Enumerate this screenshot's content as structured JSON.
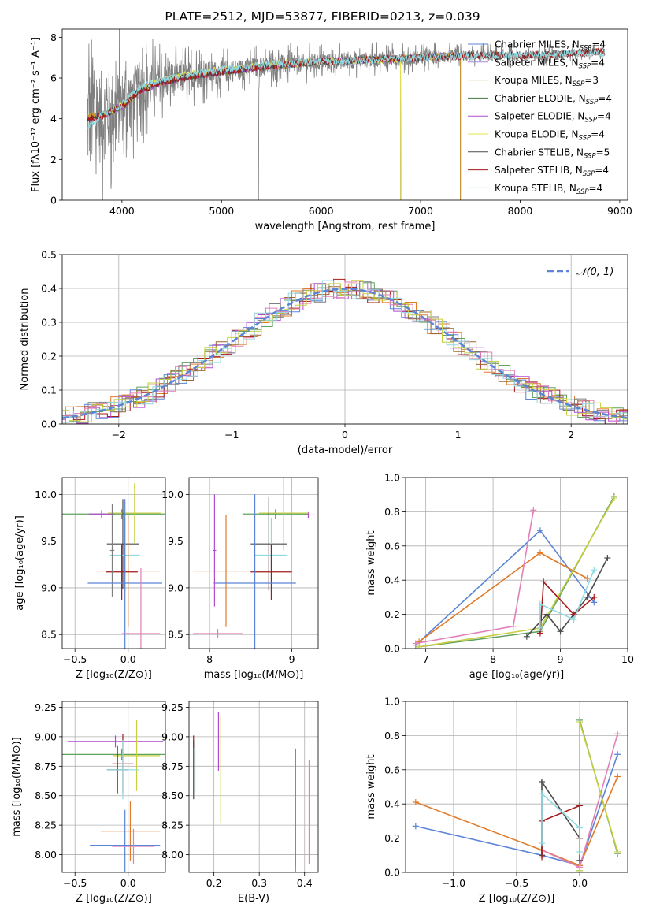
{
  "title": "PLATE=2512, MJD=53877, FIBERID=0213, z=0.039",
  "colors": {
    "blue": "#5b84d6",
    "orange": "#e07b2a",
    "green": "#5fa25f",
    "red": "#a51a1a",
    "purple": "#b24bd0",
    "brown": "#a0662e",
    "pink": "#e27fb8",
    "gray": "#7f7f7f",
    "olive": "#c7cf3f",
    "cyan": "#8fd9e0",
    "charcoal": "#4a4a4a",
    "darkgreen": "#3f7a3f"
  },
  "chart_data": [
    {
      "type": "line",
      "ylabel": "Flux [fλ10⁻¹⁷ erg cm⁻² s⁻¹ A⁻¹]",
      "xlabel": "wavelength [Angstrom, rest frame]",
      "xlim": [
        3400,
        9080
      ],
      "ylim": [
        0,
        8.4
      ],
      "xticks": [
        4000,
        5000,
        6000,
        7000,
        8000,
        9000
      ],
      "yticks": [
        0,
        2,
        4,
        6,
        8
      ],
      "legend_position": "upper right",
      "series": [
        {
          "name": "Chabrier MILES, N_SSP=4",
          "color": "#5b84d6",
          "x": [
            3650,
            3800,
            4000,
            4200,
            4400,
            4700,
            5000,
            5500,
            6000,
            6500,
            7000,
            7200,
            7400
          ],
          "y": [
            4.0,
            4.2,
            4.6,
            5.5,
            5.8,
            6.1,
            6.3,
            6.6,
            6.8,
            6.9,
            7.0,
            7.1,
            7.1
          ]
        },
        {
          "name": "Salpeter MILES, N_SSP=4",
          "color": "#a58cdf",
          "x": [
            3650,
            3800,
            4000,
            4200,
            4400,
            4700,
            5000,
            5500,
            6000,
            6500,
            7000,
            7200,
            7400
          ],
          "y": [
            4.0,
            4.1,
            4.6,
            5.4,
            5.8,
            6.1,
            6.3,
            6.6,
            6.8,
            6.9,
            7.0,
            7.1,
            7.1
          ]
        },
        {
          "name": "Kroupa MILES, N_SSP=3",
          "color": "#c8962c",
          "x": [
            3650,
            3800,
            4000,
            4200,
            4400,
            4700,
            5000,
            5500,
            6000,
            6500,
            7000,
            7200,
            7400
          ],
          "y": [
            4.1,
            4.2,
            4.6,
            5.5,
            5.8,
            6.1,
            6.3,
            6.6,
            6.8,
            6.9,
            7.0,
            7.1,
            7.1
          ]
        },
        {
          "name": "Chabrier ELODIE, N_SSP=4",
          "color": "#3f7a3f",
          "x": [
            3900,
            4000,
            4200,
            4400,
            4700,
            5000,
            5500,
            6000,
            6500,
            6800
          ],
          "y": [
            4.4,
            4.6,
            5.5,
            5.8,
            6.1,
            6.3,
            6.6,
            6.8,
            6.9,
            6.9
          ]
        },
        {
          "name": "Salpeter ELODIE, N_SSP=4",
          "color": "#b24bd0",
          "x": [
            3900,
            4000,
            4200,
            4400,
            4700,
            5000,
            5500,
            6000,
            6500,
            6800
          ],
          "y": [
            4.4,
            4.6,
            5.4,
            5.8,
            6.1,
            6.3,
            6.6,
            6.8,
            6.9,
            6.9
          ]
        },
        {
          "name": "Kroupa ELODIE, N_SSP=4",
          "color": "#e3e34a",
          "x": [
            3900,
            4000,
            4200,
            4400,
            4700,
            5000,
            5500,
            6000,
            6500,
            6800
          ],
          "y": [
            4.4,
            4.6,
            5.5,
            5.9,
            6.2,
            6.4,
            6.7,
            6.8,
            6.9,
            6.9
          ]
        },
        {
          "name": "Chabrier STELIB, N_SSP=5",
          "color": "#4a4a4a",
          "x": [
            3650,
            3800,
            4000,
            4200,
            4400,
            4700,
            5000,
            5500,
            6000,
            6500,
            7000,
            7500,
            8000,
            8500,
            8850
          ],
          "y": [
            4.0,
            4.2,
            4.6,
            5.5,
            5.8,
            6.1,
            6.3,
            6.6,
            6.8,
            6.9,
            7.0,
            7.1,
            7.1,
            7.2,
            7.3
          ]
        },
        {
          "name": "Salpeter STELIB, N_SSP=4",
          "color": "#a51a1a",
          "x": [
            3650,
            3800,
            4000,
            4200,
            4400,
            4700,
            5000,
            5500,
            6000,
            6500,
            7000,
            7500,
            8000,
            8500,
            8850
          ],
          "y": [
            4.0,
            4.1,
            4.6,
            5.4,
            5.8,
            6.1,
            6.3,
            6.6,
            6.8,
            6.9,
            7.0,
            7.1,
            7.1,
            7.2,
            7.3
          ]
        },
        {
          "name": "Kroupa STELIB, N_SSP=4",
          "color": "#8fd9e0",
          "x": [
            3650,
            3800,
            4000,
            4200,
            4400,
            4700,
            5000,
            5500,
            6000,
            6500,
            7000,
            7500,
            8000,
            8500,
            8850
          ],
          "y": [
            3.6,
            4.2,
            4.7,
            5.6,
            5.9,
            6.2,
            6.4,
            6.7,
            6.8,
            6.9,
            7.0,
            7.1,
            7.1,
            7.2,
            7.2
          ]
        }
      ],
      "observed": {
        "color": "#7f7f7f",
        "x": [
          3650,
          3800,
          4000,
          4200,
          4400,
          4700,
          5000,
          5500,
          6000,
          6500,
          7000,
          7500,
          8000,
          8500,
          8850
        ],
        "y": [
          4.0,
          4.1,
          4.6,
          5.5,
          5.8,
          6.1,
          6.3,
          6.6,
          6.8,
          6.9,
          7.0,
          7.1,
          7.1,
          7.2,
          7.3
        ],
        "noise": [
          4.0,
          3.2,
          2.6,
          1.8,
          1.3,
          1.0,
          0.8,
          0.7,
          0.6,
          0.55,
          0.5,
          0.4,
          0.35,
          0.3,
          0.3
        ]
      }
    },
    {
      "type": "histogram",
      "xlabel": "(data-model)/error",
      "ylabel": "Normed distribution",
      "xlim": [
        -2.5,
        2.5
      ],
      "ylim": [
        0,
        0.5
      ],
      "xticks": [
        -2,
        -1,
        0,
        1,
        2
      ],
      "yticks": [
        0.0,
        0.1,
        0.2,
        0.3,
        0.4,
        0.5
      ],
      "bin_width": 0.1,
      "reference": {
        "name": "𝒩(0, 1)",
        "color": "#5b84d6",
        "style": "dashed",
        "mean": 0,
        "std": 1
      },
      "series": [
        {
          "color": "#5b84d6"
        },
        {
          "color": "#e07b2a"
        },
        {
          "color": "#5fa25f"
        },
        {
          "color": "#a51a1a"
        },
        {
          "color": "#b24bd0"
        },
        {
          "color": "#a0662e"
        },
        {
          "color": "#e27fb8"
        },
        {
          "color": "#7f7f7f"
        },
        {
          "color": "#c7cf3f"
        },
        {
          "color": "#8fd9e0"
        }
      ]
    },
    {
      "type": "errorbar",
      "xlabel": "Z [log₁₀(Z/Z⊙)]",
      "ylabel": "age  [log₁₀(age/yr)]",
      "xlim": [
        -0.62,
        0.35
      ],
      "ylim": [
        8.35,
        10.18
      ],
      "xticks": [
        -0.5,
        0.0
      ],
      "yticks": [
        8.5,
        9.0,
        9.5,
        10.0
      ],
      "points": [
        {
          "x": -0.06,
          "y": 9.79,
          "xerr": 0.58,
          "yerr": 0.05,
          "color": "#5fa25f"
        },
        {
          "x": -0.25,
          "y": 9.79,
          "xerr": 0.12,
          "yerr": 0.04,
          "color": "#b24bd0"
        },
        {
          "x": 0.06,
          "y": 9.8,
          "xerr": 0.25,
          "yerr": 0.32,
          "color": "#c7cf3f"
        },
        {
          "x": -0.05,
          "y": 9.47,
          "xerr": 0.15,
          "yerr": 0.48,
          "color": "#4a4a4a"
        },
        {
          "x": -0.03,
          "y": 9.35,
          "xerr": 0.14,
          "yerr": 0.4,
          "color": "#8fd9e0"
        },
        {
          "x": 0.0,
          "y": 9.18,
          "xerr": 0.3,
          "yerr": 0.6,
          "color": "#e07b2a"
        },
        {
          "x": -0.06,
          "y": 9.17,
          "xerr": 0.15,
          "yerr": 0.3,
          "color": "#a51a1a"
        },
        {
          "x": -0.15,
          "y": 9.4,
          "xerr": 0.02,
          "yerr": 0.5,
          "color": "#7f7f7f"
        },
        {
          "x": -0.03,
          "y": 9.05,
          "xerr": 0.35,
          "yerr": 0.9,
          "color": "#5b84d6"
        },
        {
          "x": 0.12,
          "y": 8.51,
          "xerr": 0.18,
          "yerr": 0.7,
          "color": "#e27fb8"
        }
      ]
    },
    {
      "type": "errorbar",
      "xlabel": "mass [log₁₀(M/M⊙)]",
      "xlim": [
        7.75,
        9.32
      ],
      "ylim": [
        8.35,
        10.18
      ],
      "xticks": [
        8,
        9
      ],
      "yticks": [
        8.5,
        9.0,
        9.5,
        10.0
      ],
      "points": [
        {
          "x": 8.8,
          "y": 9.79,
          "xerr": 0.4,
          "yerr": 0.05,
          "color": "#5fa25f"
        },
        {
          "x": 9.2,
          "y": 9.78,
          "xerr": 0.08,
          "yerr": 0.03,
          "color": "#b24bd0"
        },
        {
          "x": 8.9,
          "y": 9.8,
          "xerr": 0.3,
          "yerr": 0.4,
          "color": "#c7cf3f"
        },
        {
          "x": 8.72,
          "y": 9.47,
          "xerr": 0.22,
          "yerr": 0.5,
          "color": "#4a4a4a"
        },
        {
          "x": 8.75,
          "y": 9.35,
          "xerr": 0.2,
          "yerr": 0.4,
          "color": "#8fd9e0"
        },
        {
          "x": 8.2,
          "y": 9.18,
          "xerr": 0.4,
          "yerr": 0.6,
          "color": "#e07b2a"
        },
        {
          "x": 8.75,
          "y": 9.17,
          "xerr": 0.25,
          "yerr": 0.3,
          "color": "#a51a1a"
        },
        {
          "x": 8.55,
          "y": 9.05,
          "xerr": 0.5,
          "yerr": 0.95,
          "color": "#5b84d6"
        },
        {
          "x": 8.06,
          "y": 9.4,
          "xerr": 0.02,
          "yerr": 0.6,
          "color": "#b24bd0"
        },
        {
          "x": 8.1,
          "y": 8.51,
          "xerr": 0.3,
          "yerr": 0.05,
          "color": "#e27fb8"
        }
      ]
    },
    {
      "type": "line",
      "xlabel": "age  [log₁₀(age/yr)]",
      "ylabel": "mass weight",
      "xlim": [
        6.7,
        10
      ],
      "ylim": [
        0,
        1
      ],
      "xticks": [
        7,
        8,
        9,
        10
      ],
      "yticks": [
        0.0,
        0.2,
        0.4,
        0.6,
        0.8,
        1.0
      ],
      "series": [
        {
          "color": "#5b84d6",
          "x": [
            6.85,
            8.7,
            9.5
          ],
          "y": [
            0.02,
            0.69,
            0.27
          ]
        },
        {
          "color": "#e07b2a",
          "x": [
            6.9,
            8.7,
            9.4
          ],
          "y": [
            0.04,
            0.56,
            0.41
          ]
        },
        {
          "color": "#e27fb8",
          "x": [
            6.85,
            8.3,
            8.6
          ],
          "y": [
            0.03,
            0.13,
            0.81
          ]
        },
        {
          "color": "#5fa25f",
          "x": [
            6.9,
            8.7,
            9.8
          ],
          "y": [
            0.01,
            0.1,
            0.89
          ]
        },
        {
          "color": "#c7cf3f",
          "x": [
            6.9,
            8.7,
            9.8
          ],
          "y": [
            0.01,
            0.12,
            0.88
          ]
        },
        {
          "color": "#4a4a4a",
          "x": [
            8.5,
            8.8,
            9.0,
            9.4,
            9.7
          ],
          "y": [
            0.07,
            0.2,
            0.1,
            0.3,
            0.53
          ]
        },
        {
          "color": "#a51a1a",
          "x": [
            8.7,
            8.75,
            9.2,
            9.5
          ],
          "y": [
            0.09,
            0.39,
            0.2,
            0.3
          ]
        },
        {
          "color": "#8fd9e0",
          "x": [
            8.7,
            8.7,
            9.2,
            9.5
          ],
          "y": [
            0.12,
            0.26,
            0.17,
            0.46
          ]
        }
      ]
    },
    {
      "type": "errorbar",
      "xlabel": "Z [log₁₀(Z/Z⊙)]",
      "ylabel": "mass [log₁₀(M/M⊙)]",
      "xlim": [
        -0.62,
        0.35
      ],
      "ylim": [
        7.85,
        9.3
      ],
      "xticks": [
        -0.5,
        0.0
      ],
      "yticks": [
        8.0,
        8.25,
        8.5,
        8.75,
        9.0,
        9.25
      ],
      "points": [
        {
          "x": -0.12,
          "y": 8.96,
          "xerr": 0.45,
          "yerr": 0.05,
          "color": "#b24bd0"
        },
        {
          "x": -0.06,
          "y": 8.85,
          "xerr": 0.6,
          "yerr": 0.05,
          "color": "#5fa25f"
        },
        {
          "x": 0.08,
          "y": 8.84,
          "xerr": 0.22,
          "yerr": 0.3,
          "color": "#c7cf3f"
        },
        {
          "x": -0.05,
          "y": 8.77,
          "xerr": 0.1,
          "yerr": 0.25,
          "color": "#a51a1a"
        },
        {
          "x": -0.1,
          "y": 8.72,
          "xerr": 0.1,
          "yerr": 0.2,
          "color": "#4a4a4a"
        },
        {
          "x": -0.05,
          "y": 8.72,
          "xerr": 0.15,
          "yerr": 0.25,
          "color": "#8fd9e0"
        },
        {
          "x": 0.02,
          "y": 8.2,
          "xerr": 0.28,
          "yerr": 0.25,
          "color": "#e07b2a"
        },
        {
          "x": -0.03,
          "y": 8.08,
          "xerr": 0.33,
          "yerr": 0.3,
          "color": "#5b84d6"
        },
        {
          "x": 0.05,
          "y": 8.07,
          "xerr": 0.2,
          "yerr": 0.15,
          "color": "#e27fb8"
        }
      ]
    },
    {
      "type": "errorbar",
      "xlabel": "E(B-V)",
      "xlim": [
        0.145,
        0.43
      ],
      "ylim": [
        7.85,
        9.3
      ],
      "xticks": [
        0.2,
        0.3,
        0.4
      ],
      "yticks": [
        8.0,
        8.25,
        8.5,
        8.75,
        9.0,
        9.25
      ],
      "points": [
        {
          "x": 0.155,
          "y": 8.96,
          "xerr": 0,
          "yerr": 0.05,
          "color": "#a51a1a"
        },
        {
          "x": 0.155,
          "y": 8.72,
          "xerr": 0,
          "yerr": 0.25,
          "color": "#4a4a4a"
        },
        {
          "x": 0.158,
          "y": 8.72,
          "xerr": 0,
          "yerr": 0.2,
          "color": "#8fd9e0"
        },
        {
          "x": 0.21,
          "y": 8.96,
          "xerr": 0,
          "yerr": 0.25,
          "color": "#b24bd0"
        },
        {
          "x": 0.215,
          "y": 8.72,
          "xerr": 0,
          "yerr": 0.45,
          "color": "#c7cf3f"
        },
        {
          "x": 0.38,
          "y": 8.4,
          "xerr": 0,
          "yerr": 0.5,
          "color": "#e07b2a"
        },
        {
          "x": 0.38,
          "y": 8.35,
          "xerr": 0,
          "yerr": 0.55,
          "color": "#5b84d6"
        },
        {
          "x": 0.41,
          "y": 8.36,
          "xerr": 0,
          "yerr": 0.44,
          "color": "#e27fb8"
        }
      ]
    },
    {
      "type": "line",
      "xlabel": "Z [log₁₀(Z/Z⊙)]",
      "ylabel": "mass weight",
      "xlim": [
        -1.38,
        0.38
      ],
      "ylim": [
        0,
        1
      ],
      "xticks": [
        -1.0,
        -0.5,
        0.0
      ],
      "yticks": [
        0.0,
        0.2,
        0.4,
        0.6,
        0.8,
        1.0
      ],
      "series": [
        {
          "color": "#5b84d6",
          "x": [
            -1.3,
            -0.3,
            0.0,
            0.3
          ],
          "y": [
            0.27,
            0.1,
            0.04,
            0.69
          ]
        },
        {
          "color": "#e07b2a",
          "x": [
            -1.3,
            -0.3,
            0.0,
            0.3
          ],
          "y": [
            0.41,
            0.13,
            0.04,
            0.56
          ]
        },
        {
          "color": "#e27fb8",
          "x": [
            -0.3,
            0.0,
            0.3
          ],
          "y": [
            0.13,
            0.03,
            0.81
          ]
        },
        {
          "color": "#5fa25f",
          "x": [
            0.0,
            0.0,
            0.3
          ],
          "y": [
            0.01,
            0.89,
            0.11
          ]
        },
        {
          "color": "#c7cf3f",
          "x": [
            0.0,
            0.0,
            0.3
          ],
          "y": [
            0.01,
            0.88,
            0.12
          ]
        },
        {
          "color": "#4a4a4a",
          "x": [
            -0.3,
            -0.3,
            0.0,
            0.0
          ],
          "y": [
            0.1,
            0.53,
            0.2,
            0.07
          ]
        },
        {
          "color": "#a51a1a",
          "x": [
            -0.3,
            -0.3,
            0.0,
            0.0
          ],
          "y": [
            0.09,
            0.3,
            0.39,
            0.2
          ]
        },
        {
          "color": "#8fd9e0",
          "x": [
            -0.3,
            -0.3,
            0.0,
            0.0
          ],
          "y": [
            0.17,
            0.46,
            0.26,
            0.12
          ]
        }
      ]
    }
  ]
}
